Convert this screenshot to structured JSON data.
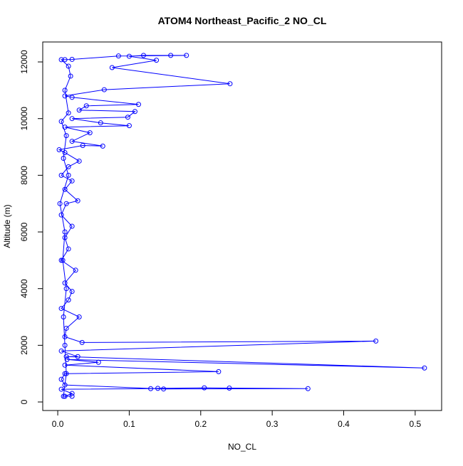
{
  "chart_data": {
    "type": "line",
    "title": "ATOM4 Northeast_Pacific_2 NO_CL",
    "x_label": "NO_CL",
    "y_label": "Altitude (m)",
    "color": "#0000ff",
    "xlim": [
      -0.021,
      0.537
    ],
    "ylim": [
      -301,
      12704
    ],
    "xticks": [
      {
        "value": 0,
        "label": "0.0"
      },
      0.1,
      0.2,
      0.3,
      0.4,
      0.5
    ],
    "yticks": [
      0,
      2000,
      4000,
      6000,
      8000,
      10000,
      12000
    ],
    "x": [
      0.01,
      0.02,
      0.005,
      0.13,
      0.14,
      0.205,
      0.24,
      0.35,
      0.148,
      0.01,
      0.005,
      0.01,
      0.225,
      0.01,
      0.057,
      0.013,
      0.513,
      0.012,
      0.028,
      0.005,
      0.445,
      0.034,
      0.01,
      0.012,
      0.03,
      0.005,
      0.015,
      0.02,
      0.01,
      0.025,
      0.005,
      0.015,
      0.01,
      0.02,
      0.005,
      0.012,
      0.028,
      0.01,
      0.02,
      0.005,
      0.015,
      0.03,
      0.01,
      0.002,
      0.035,
      0.063,
      0.02,
      0.045,
      0.01,
      0.1,
      0.06,
      0.02,
      0.098,
      0.108,
      0.03,
      0.04,
      0.113,
      0.02,
      0.01,
      0.065,
      0.241,
      0.076,
      0.138,
      0.1,
      0.12,
      0.158,
      0.18,
      0.085,
      0.02,
      0.01,
      0.005,
      0.015,
      0.018,
      0.01,
      0.015,
      0.005,
      0.012,
      0.008,
      0.015,
      0.003,
      0.01,
      0.007,
      0.012,
      0.008,
      0.01,
      0.012,
      0.008,
      0.02
    ],
    "values": [
      200,
      300,
      450,
      470,
      480,
      500,
      490,
      470,
      460,
      600,
      800,
      1000,
      1070,
      1300,
      1400,
      1500,
      1200,
      1600,
      1600,
      1800,
      2150,
      2100,
      2300,
      2600,
      3000,
      3300,
      3600,
      3900,
      4200,
      4650,
      5000,
      5400,
      5800,
      6200,
      6600,
      7000,
      7100,
      7500,
      7800,
      8000,
      8300,
      8500,
      8800,
      8900,
      9050,
      9030,
      9200,
      9500,
      9700,
      9750,
      9850,
      10000,
      10050,
      10250,
      10300,
      10450,
      10500,
      10750,
      10800,
      11020,
      11230,
      11800,
      12060,
      12200,
      12230,
      12230,
      12230,
      12210,
      12090,
      12080,
      12080,
      11850,
      11500,
      11000,
      10200,
      9900,
      9400,
      8600,
      8000,
      7000,
      6000,
      5000,
      4000,
      3000,
      2000,
      1000,
      200,
      200
    ]
  }
}
